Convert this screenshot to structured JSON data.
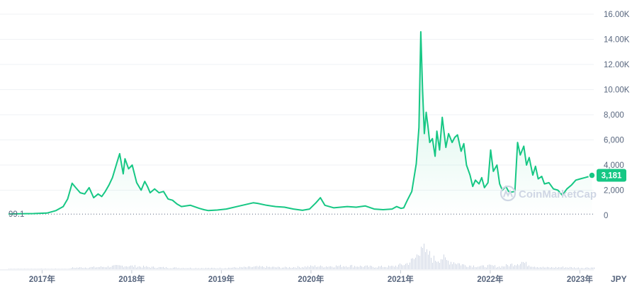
{
  "chart_data": {
    "type": "area",
    "currency": "JPY",
    "start_label": "99.1",
    "current_value": 3181,
    "current_label": "3,181",
    "watermark": "CoinMarketCap",
    "ylim": [
      0,
      16000
    ],
    "yticks": [
      {
        "value": 0,
        "label": "0"
      },
      {
        "value": 2000,
        "label": "2,000"
      },
      {
        "value": 4000,
        "label": "4,000"
      },
      {
        "value": 6000,
        "label": "6,000"
      },
      {
        "value": 8000,
        "label": "8,000"
      },
      {
        "value": 10000,
        "label": "10.00K"
      },
      {
        "value": 12000,
        "label": "12.00K"
      },
      {
        "value": 14000,
        "label": "14.00K"
      },
      {
        "value": 16000,
        "label": "16.00K"
      }
    ],
    "xticks": [
      {
        "value": 2017.0,
        "label": "2017年"
      },
      {
        "value": 2018.0,
        "label": "2018年"
      },
      {
        "value": 2019.0,
        "label": "2019年"
      },
      {
        "value": 2020.0,
        "label": "2020年"
      },
      {
        "value": 2021.0,
        "label": "2021年"
      },
      {
        "value": 2022.0,
        "label": "2022年"
      },
      {
        "value": 2023.0,
        "label": "2023年"
      }
    ],
    "xlim": [
      2016.72,
      2023.25
    ],
    "colors": {
      "line": "#16c784",
      "grid": "#eff2f5",
      "text": "#58667e",
      "volume": "#cfd6e4"
    },
    "series": [
      {
        "x": [
          2016.72,
          2016.85,
          2017.0,
          2017.15,
          2017.25,
          2017.33,
          2017.38,
          2017.43,
          2017.47,
          2017.52,
          2017.57,
          2017.62,
          2017.67,
          2017.72,
          2017.76,
          2017.8,
          2017.84,
          2017.88,
          2017.93,
          2017.96,
          2018.0,
          2018.02,
          2018.06,
          2018.1,
          2018.15,
          2018.2,
          2018.24,
          2018.27,
          2018.3,
          2018.35,
          2018.4,
          2018.45,
          2018.5,
          2018.55,
          2018.6,
          2018.65,
          2018.75,
          2018.85,
          2018.9,
          2018.95,
          2019.05,
          2019.15,
          2019.3,
          2019.45,
          2019.5,
          2019.6,
          2019.7,
          2019.8,
          2019.9,
          2020.0,
          2020.08,
          2020.15,
          2020.2,
          2020.25,
          2020.35,
          2020.5,
          2020.6,
          2020.7,
          2020.8,
          2020.9,
          2021.0,
          2021.05,
          2021.1,
          2021.13,
          2021.17,
          2021.22,
          2021.27,
          2021.3,
          2021.32,
          2021.34,
          2021.36,
          2021.38,
          2021.4,
          2021.42,
          2021.45,
          2021.48,
          2021.5,
          2021.53,
          2021.56,
          2021.6,
          2021.63,
          2021.67,
          2021.7,
          2021.73,
          2021.77,
          2021.8,
          2021.83,
          2021.87,
          2021.9,
          2021.93,
          2021.97,
          2022.0,
          2022.03,
          2022.07,
          2022.1,
          2022.13,
          2022.17,
          2022.2,
          2022.23,
          2022.27,
          2022.3,
          2022.33,
          2022.37,
          2022.4,
          2022.43,
          2022.47,
          2022.5,
          2022.53,
          2022.57,
          2022.6,
          2022.63,
          2022.67,
          2022.7,
          2022.75,
          2022.8,
          2022.85,
          2022.9,
          2022.95,
          2023.0,
          2023.05,
          2023.1,
          2023.15,
          2023.2,
          2023.23
        ],
        "y": [
          99,
          130,
          140,
          180,
          380,
          700,
          1300,
          2550,
          2200,
          1800,
          1700,
          2200,
          1400,
          1700,
          1500,
          1900,
          2400,
          3000,
          4200,
          4900,
          3300,
          4500,
          3700,
          4000,
          2600,
          2000,
          2700,
          2300,
          1800,
          2100,
          1800,
          1900,
          1300,
          1200,
          900,
          700,
          800,
          550,
          450,
          380,
          420,
          500,
          750,
          1000,
          950,
          800,
          700,
          650,
          500,
          400,
          500,
          1000,
          1400,
          800,
          600,
          700,
          650,
          750,
          500,
          450,
          500,
          700,
          550,
          600,
          1200,
          1900,
          4100,
          7000,
          14600,
          10000,
          6500,
          8200,
          7100,
          5800,
          6100,
          4700,
          6700,
          5200,
          7800,
          5400,
          6500,
          5800,
          6200,
          6400,
          5100,
          5700,
          4000,
          3200,
          2300,
          2800,
          2500,
          3000,
          2200,
          2600,
          5200,
          3500,
          4000,
          2500,
          2000,
          2300,
          1900,
          1850,
          1900,
          5800,
          4800,
          5500,
          4000,
          4600,
          3200,
          3900,
          2900,
          3100,
          2500,
          2600,
          2100,
          2000,
          1600,
          2100,
          2400,
          2800,
          2900,
          3000,
          3100,
          3181
        ]
      }
    ],
    "volume": {
      "x": [
        2017.4,
        2017.7,
        2018.0,
        2018.1,
        2018.3,
        2018.6,
        2019.0,
        2019.3,
        2019.5,
        2019.8,
        2020.0,
        2020.15,
        2020.2,
        2020.5,
        2020.8,
        2021.0,
        2021.15,
        2021.25,
        2021.3,
        2021.32,
        2021.34,
        2021.37,
        2021.4,
        2021.45,
        2021.5,
        2021.55,
        2021.6,
        2021.7,
        2021.8,
        2021.9,
        2022.0,
        2022.1,
        2022.2,
        2022.3,
        2022.4,
        2022.45,
        2022.5,
        2022.6,
        2022.7,
        2022.8,
        2022.9,
        2023.0,
        2023.1,
        2023.2
      ],
      "y": [
        0.04,
        0.06,
        0.1,
        0.09,
        0.06,
        0.04,
        0.03,
        0.05,
        0.07,
        0.05,
        0.07,
        0.09,
        0.08,
        0.1,
        0.07,
        0.08,
        0.15,
        0.3,
        0.5,
        1.0,
        0.65,
        0.4,
        0.45,
        0.3,
        0.28,
        0.35,
        0.25,
        0.2,
        0.12,
        0.1,
        0.08,
        0.1,
        0.07,
        0.12,
        0.18,
        0.22,
        0.14,
        0.08,
        0.05,
        0.05,
        0.06,
        0.05,
        0.04,
        0.05
      ]
    }
  }
}
